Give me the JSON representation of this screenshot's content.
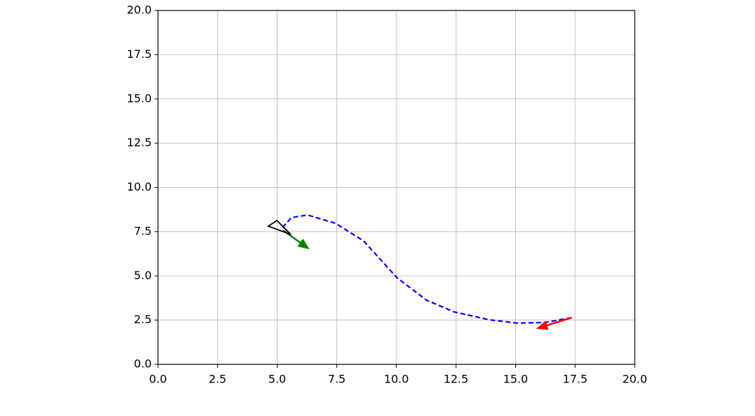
{
  "chart_data": {
    "type": "line",
    "xlim": [
      0,
      20
    ],
    "ylim": [
      0,
      20
    ],
    "xticks": [
      {
        "value": 0,
        "label": "0.0"
      },
      2.5,
      {
        "value": 5,
        "label": "5.0"
      },
      7.5,
      {
        "value": 10,
        "label": "10.0"
      },
      12.5,
      {
        "value": 15,
        "label": "15.0"
      },
      17.5,
      {
        "value": 20,
        "label": "20.0"
      }
    ],
    "yticks": [
      {
        "value": 0,
        "label": "0.0"
      },
      2.5,
      {
        "value": 5,
        "label": "5.0"
      },
      7.5,
      {
        "value": 10,
        "label": "10.0"
      },
      12.5,
      {
        "value": 15,
        "label": "15.0"
      },
      17.5,
      {
        "value": 20,
        "label": "20.0"
      }
    ],
    "grid": true,
    "series": [
      {
        "kind": "line",
        "dashed": true,
        "color": "#0000ff",
        "x": [
          5.22,
          5.6,
          6.28,
          7.45,
          8.62,
          10.03,
          11.26,
          12.43,
          13.9,
          15.07,
          16.25,
          17.36
        ],
        "y": [
          7.73,
          8.3,
          8.44,
          7.97,
          6.98,
          4.89,
          3.63,
          2.96,
          2.52,
          2.33,
          2.37,
          2.64
        ]
      },
      {
        "kind": "arrow",
        "color": "#008000",
        "x": [
          5.25,
          6.28
        ],
        "y": [
          7.57,
          6.58
        ]
      },
      {
        "kind": "arrow",
        "color": "#ff0000",
        "x": [
          17.36,
          15.95
        ],
        "y": [
          2.64,
          2.05
        ]
      },
      {
        "kind": "polygon",
        "color": "#000000",
        "x": [
          4.63,
          4.99,
          5.57
        ],
        "y": [
          7.81,
          8.13,
          7.34
        ]
      }
    ]
  }
}
